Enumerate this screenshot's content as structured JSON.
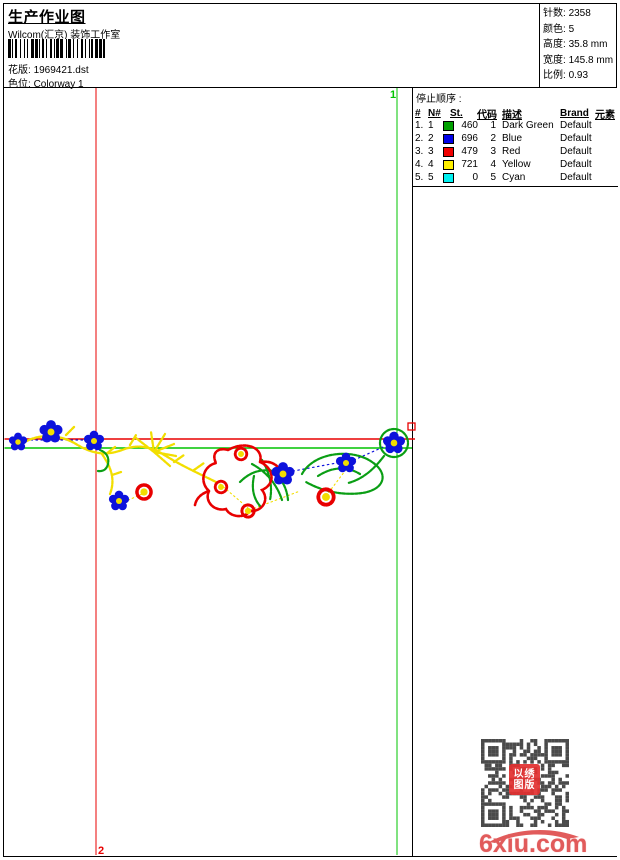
{
  "header": {
    "title": "生产作业图",
    "studio": "Wilcom(汇京) 装饰工作室",
    "design_label": "花版:",
    "design_value": "1969421.dst",
    "colorway_label": "色位:",
    "colorway_value": "Colorway 1"
  },
  "barcode_pattern": "2111221211122121112112211121221121121221121112212112",
  "stats": [
    {
      "label": "针数:",
      "value": "2358"
    },
    {
      "label": "颜色:",
      "value": "5"
    },
    {
      "label": "高度:",
      "value": "35.8 mm"
    },
    {
      "label": "宽度:",
      "value": "145.8 mm"
    },
    {
      "label": "比例:",
      "value": "0.93"
    }
  ],
  "stop_sequence": {
    "title": "停止顺序 :",
    "columns": [
      "#",
      "N#",
      "St.",
      "代码",
      "描述",
      "Brand",
      "元素"
    ],
    "rows": [
      {
        "index": "1.",
        "needle": "1",
        "color": "#00A000",
        "stitches": "460",
        "code": "1",
        "description": "Dark Green",
        "brand": "Default",
        "element": ""
      },
      {
        "index": "2.",
        "needle": "2",
        "color": "#0000E8",
        "stitches": "696",
        "code": "2",
        "description": "Blue",
        "brand": "Default",
        "element": ""
      },
      {
        "index": "3.",
        "needle": "3",
        "color": "#F00000",
        "stitches": "479",
        "code": "3",
        "description": "Red",
        "brand": "Default",
        "element": ""
      },
      {
        "index": "4.",
        "needle": "4",
        "color": "#FFF000",
        "stitches": "721",
        "code": "4",
        "description": "Yellow",
        "brand": "Default",
        "element": ""
      },
      {
        "index": "5.",
        "needle": "5",
        "color": "#00F0F0",
        "stitches": "0",
        "code": "5",
        "description": "Cyan",
        "brand": "Default",
        "element": ""
      }
    ]
  },
  "guides": {
    "green_line_label": "1",
    "red_line_label": "2"
  },
  "watermark": {
    "site": "6xiu.com",
    "seal_line1": "以绣",
    "seal_line2": "图版"
  },
  "colors": {
    "guide_red": "#e80000",
    "guide_green": "#00c400",
    "thread_yellow": "#f2de00",
    "thread_green": "#0a9e14",
    "thread_red": "#e80000",
    "thread_blue": "#0d12dc",
    "qr": "#4a4a4a",
    "watermark": "#e15b5b",
    "seal": "#e23030"
  }
}
